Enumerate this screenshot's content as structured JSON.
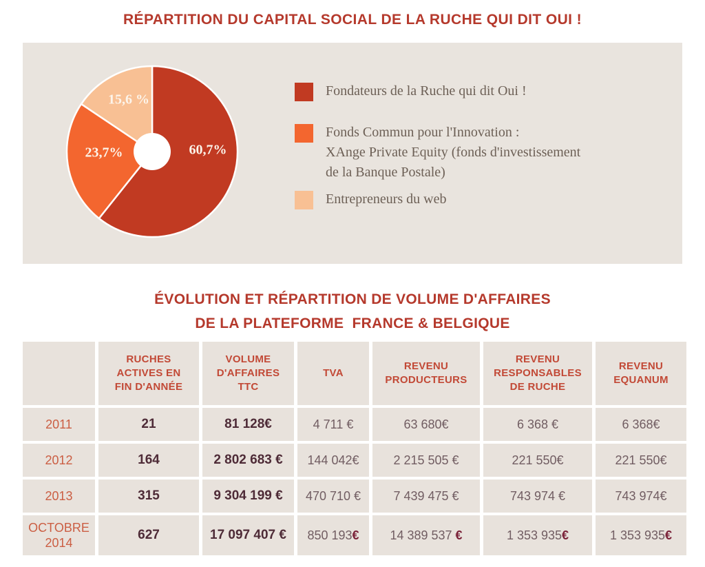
{
  "titles": {
    "main": "RÉPARTITION DU CAPITAL SOCIAL DE LA RUCHE QUI DIT OUI !",
    "secondary_line1": "ÉVOLUTION ET RÉPARTITION DE VOLUME D'AFFAIRES",
    "secondary_line2": "DE LA PLATEFORME  FRANCE & BELGIQUE"
  },
  "colors": {
    "title_red": "#b5392c",
    "header_red": "#c24936",
    "year_red": "#cb5e43",
    "value_dark": "#4e2b37",
    "value_gray": "#715d62",
    "euro_bold": "#7a2138",
    "panel_bg": "#e9e4de",
    "cell_bg": "#e8e2dc",
    "legend_text": "#6d6056"
  },
  "chart_data": [
    {
      "type": "pie",
      "title": "RÉPARTITION DU CAPITAL SOCIAL DE LA RUCHE QUI DIT OUI !",
      "values": [
        60.7,
        23.7,
        15.6
      ],
      "value_labels": [
        "60,7%",
        "23,7%",
        "15,6 %"
      ],
      "slice_colors": [
        "#c13a22",
        "#f3662f",
        "#f8c094"
      ],
      "donut": true,
      "start_angle": "top",
      "direction": "clockwise",
      "legend_position": "right",
      "legend": [
        {
          "color": "#c13a22",
          "lines": [
            "Fondateurs de la Ruche qui dit Oui !"
          ]
        },
        {
          "color": "#f3662f",
          "lines": [
            "Fonds Commun pour l'Innovation :",
            "XAnge Private Equity (fonds d'investissement",
            "de la Banque Postale)"
          ]
        },
        {
          "color": "#f8c094",
          "lines": [
            "Entrepreneurs du web"
          ]
        }
      ]
    },
    {
      "type": "table",
      "title": "ÉVOLUTION ET RÉPARTITION DE VOLUME D'AFFAIRES DE LA PLATEFORME FRANCE & BELGIQUE",
      "columns": [
        [],
        [
          "RUCHES",
          "ACTIVES EN",
          "FIN D'ANNÉE"
        ],
        [
          "VOLUME",
          "D'AFFAIRES",
          "TTC"
        ],
        [
          "TVA"
        ],
        [
          "REVENU",
          "PRODUCTEURS"
        ],
        [
          "REVENU",
          "RESPONSABLES",
          "DE RUCHE"
        ],
        [
          "REVENU",
          "EQUANUM"
        ]
      ],
      "bold_columns": [
        0,
        1
      ],
      "rows": [
        {
          "year": "2011",
          "values": [
            "21",
            "81 128€",
            "4 711 €",
            "63 680€",
            "6 368 €",
            "6 368€"
          ],
          "bold_euro": false
        },
        {
          "year": "2012",
          "values": [
            "164",
            "2 802 683 €",
            "144 042€",
            "2 215 505 €",
            "221 550€",
            "221 550€"
          ],
          "bold_euro": false
        },
        {
          "year": "2013",
          "values": [
            "315",
            "9 304 199 €",
            "470 710 €",
            "7 439 475 €",
            "743 974 €",
            "743 974€"
          ],
          "bold_euro": false
        },
        {
          "year": "OCTOBRE 2014",
          "values": [
            "627",
            "17 097 407 €",
            "850 193€",
            "14 389 537 €",
            "1 353 935€",
            "1 353 935€"
          ],
          "bold_euro": true
        }
      ]
    }
  ]
}
